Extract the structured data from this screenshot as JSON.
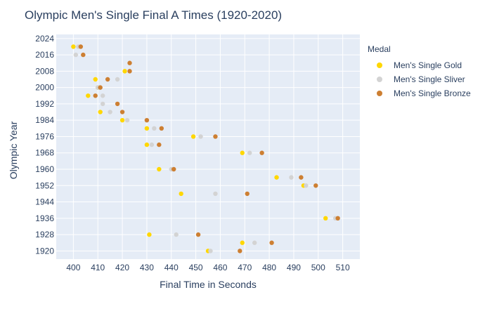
{
  "chart_data": {
    "type": "scatter",
    "title": "Olympic Men's Single Final A Times (1920-2020)",
    "xlabel": "Final Time in Seconds",
    "ylabel": "Olympic Year",
    "xlim": [
      393,
      517
    ],
    "ylim": [
      1916,
      2026
    ],
    "xticks": [
      400,
      410,
      420,
      430,
      440,
      450,
      460,
      470,
      480,
      490,
      500,
      510
    ],
    "yticks": [
      1920,
      1928,
      1936,
      1944,
      1952,
      1960,
      1968,
      1976,
      1984,
      1992,
      2000,
      2008,
      2016,
      2024
    ],
    "grid": true,
    "legend_title": "Medal",
    "legend_position": "right",
    "series": [
      {
        "name": "Men's Single Gold",
        "color": "#ffd700",
        "x": [
          455,
          469,
          431,
          503,
          444,
          494,
          483,
          435,
          469,
          430,
          449,
          430,
          420,
          411,
          406,
          410,
          409,
          421,
          400
        ],
        "y": [
          1920,
          1924,
          1928,
          1936,
          1948,
          1952,
          1956,
          1960,
          1968,
          1972,
          1976,
          1980,
          1984,
          1988,
          1996,
          2000,
          2004,
          2008,
          2020
        ]
      },
      {
        "name": "Men's Single Sliver",
        "color": "#d3d3d3",
        "x": [
          456,
          474,
          442,
          507,
          458,
          495,
          489,
          440,
          472,
          432,
          452,
          433,
          422,
          415,
          412,
          412,
          410,
          418,
          401,
          402
        ],
        "y": [
          1920,
          1924,
          1928,
          1936,
          1948,
          1952,
          1956,
          1960,
          1968,
          1972,
          1976,
          1980,
          1984,
          1988,
          1992,
          1996,
          2000,
          2004,
          2016,
          2020
        ]
      },
      {
        "name": "Men's Single Bronze",
        "color": "#cd7f32",
        "x": [
          468,
          481,
          451,
          508,
          471,
          499,
          493,
          441,
          477,
          435,
          458,
          436,
          430,
          420,
          418,
          409,
          411,
          414,
          423,
          423,
          404,
          403
        ],
        "y": [
          1920,
          1924,
          1928,
          1936,
          1948,
          1952,
          1956,
          1960,
          1968,
          1972,
          1976,
          1980,
          1984,
          1988,
          1992,
          1996,
          2000,
          2004,
          2008,
          2012,
          2016,
          2020
        ]
      }
    ]
  }
}
